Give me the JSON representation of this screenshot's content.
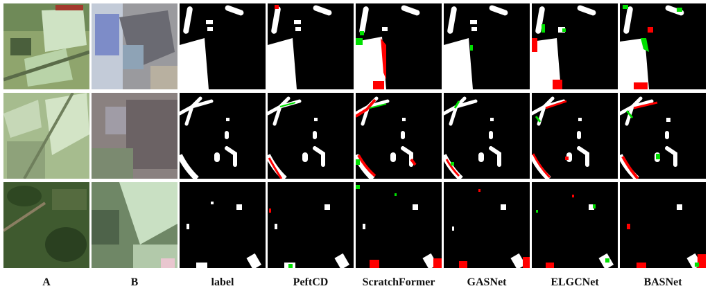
{
  "columns": [
    {
      "key": "A",
      "label": "A"
    },
    {
      "key": "B",
      "label": "B"
    },
    {
      "key": "label",
      "label": "label"
    },
    {
      "key": "peftcd",
      "label": "PeftCD"
    },
    {
      "key": "scratchformer",
      "label": "ScratchFormer"
    },
    {
      "key": "gasnet",
      "label": "GASNet"
    },
    {
      "key": "elgcnet",
      "label": "ELGCNet"
    },
    {
      "key": "basnet",
      "label": "BASNet"
    }
  ],
  "colors": {
    "background": "#000000",
    "change": "#ffffff",
    "false_positive": "#ff0000",
    "false_negative": "#00e000"
  },
  "rows": 3
}
